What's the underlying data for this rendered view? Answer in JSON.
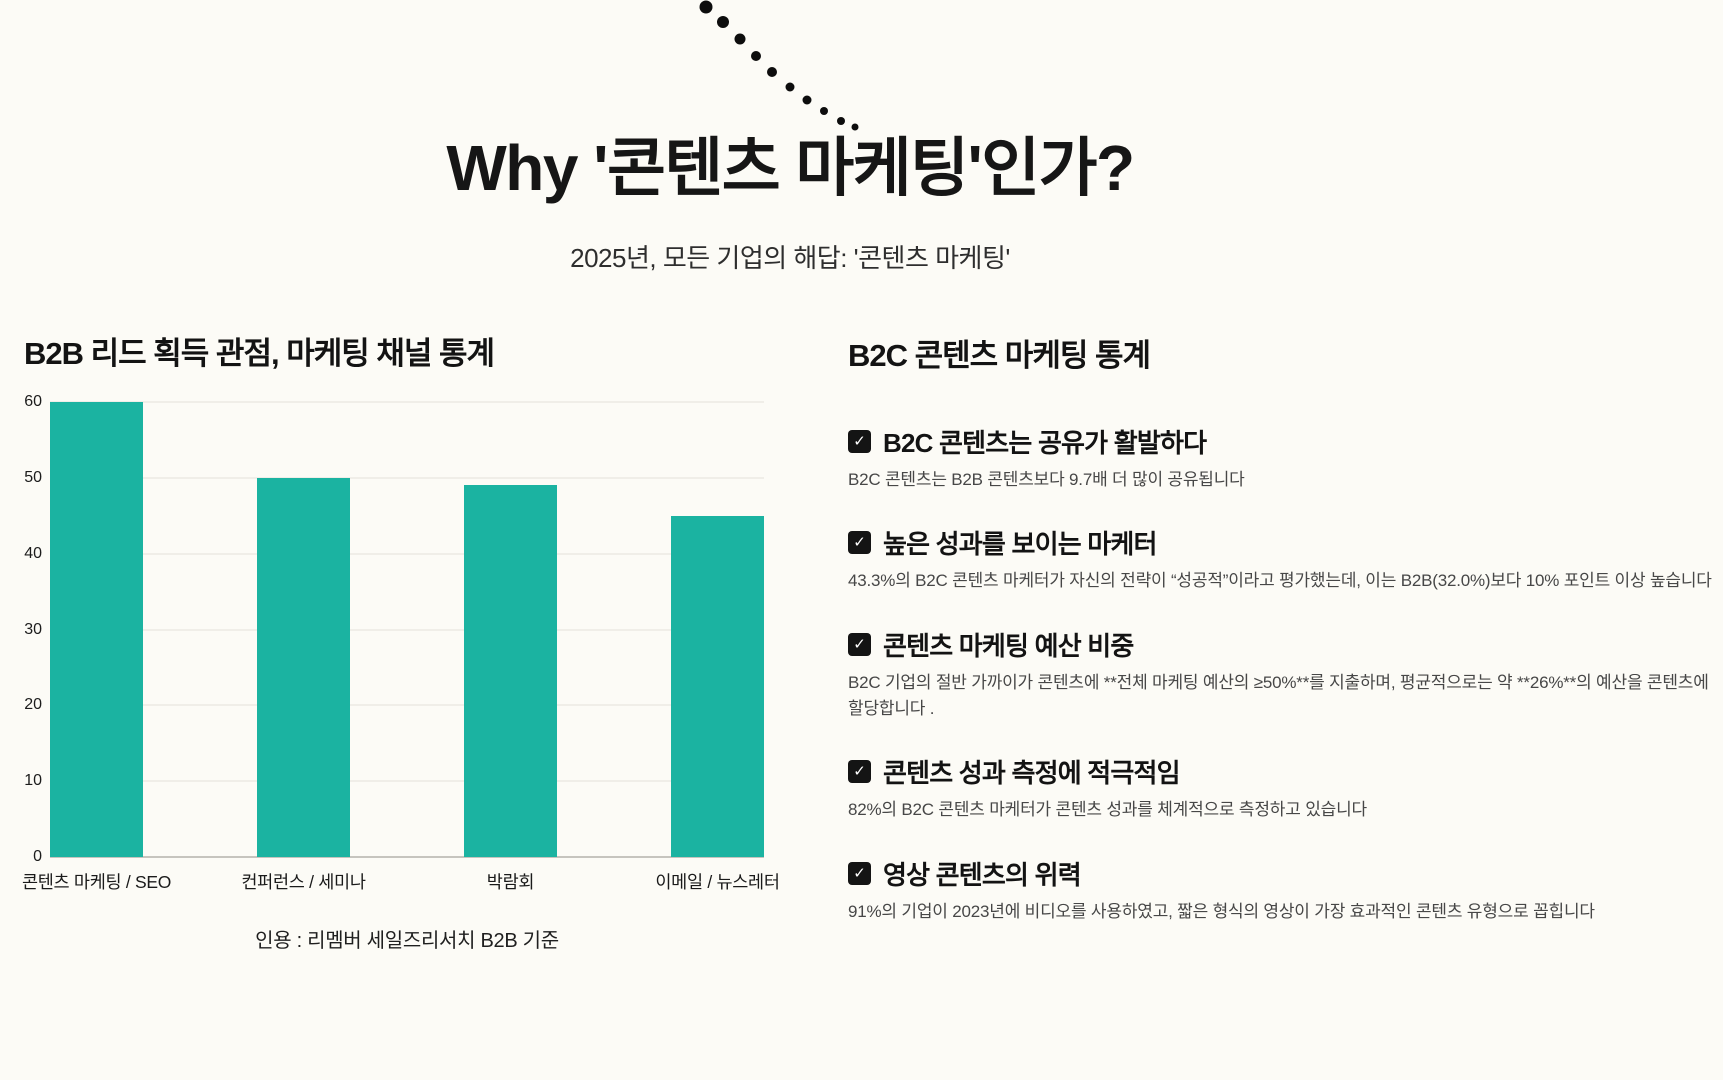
{
  "colors": {
    "background": "#fcfbf6",
    "bar": "#1bb3a1",
    "text": "#111111"
  },
  "icons": {
    "check": "✓"
  },
  "header": {
    "title": "Why '콘텐츠 마케팅'인가?",
    "subtitle": "2025년, 모든 기업의 해답: '콘텐츠 마케팅'"
  },
  "chart_section": {
    "title": "B2B 리드 획득 관점, 마케팅 채널 통계",
    "caption": "인용 : 리멤버 세일즈리서치 B2B 기준"
  },
  "chart_data": {
    "type": "bar",
    "title": "B2B 리드 획득 관점, 마케팅 채널 통계",
    "categories": [
      "콘텐츠 마케팅 / SEO",
      "컨퍼런스 / 세미나",
      "박람회",
      "이메일 / 뉴스레터"
    ],
    "values": [
      60,
      50,
      49,
      45
    ],
    "xlabel": "",
    "ylabel": "",
    "ylim": [
      0,
      60
    ],
    "yticks": [
      0,
      10,
      20,
      30,
      40,
      50,
      60
    ],
    "grid": true,
    "legend": false,
    "bar_color": "#1bb3a1",
    "source": "인용 : 리멤버 세일즈리서치 B2B 기준"
  },
  "stats_section": {
    "title": "B2C 콘텐츠 마케팅 통계",
    "items": [
      {
        "heading": "B2C 콘텐츠는 공유가 활발하다",
        "body": "B2C 콘텐츠는 B2B 콘텐츠보다 9.7배 더 많이 공유됩니다"
      },
      {
        "heading": "높은 성과를 보이는 마케터",
        "body": "43.3%의 B2C 콘텐츠 마케터가 자신의 전략이 “성공적”이라고 평가했는데, 이는 B2B(32.0%)보다 10% 포인트 이상 높습니다"
      },
      {
        "heading": "콘텐츠 마케팅 예산 비중",
        "body": "B2C 기업의 절반 가까이가 콘텐츠에 **전체 마케팅 예산의 ≥50%**를 지출하며, 평균적으로는 약 **26%**의 예산을 콘텐츠에 할당합니다 ."
      },
      {
        "heading": "콘텐츠 성과 측정에 적극적임",
        "body": "82%의 B2C 콘텐츠 마케터가 콘텐츠 성과를 체계적으로 측정하고 있습니다"
      },
      {
        "heading": "영상 콘텐츠의 위력",
        "body": "91%의 기업이 2023년에 비디오를 사용하였고, 짧은 형식의 영상이 가장 효과적인 콘텐츠 유형으로 꼽힙니다"
      }
    ]
  }
}
